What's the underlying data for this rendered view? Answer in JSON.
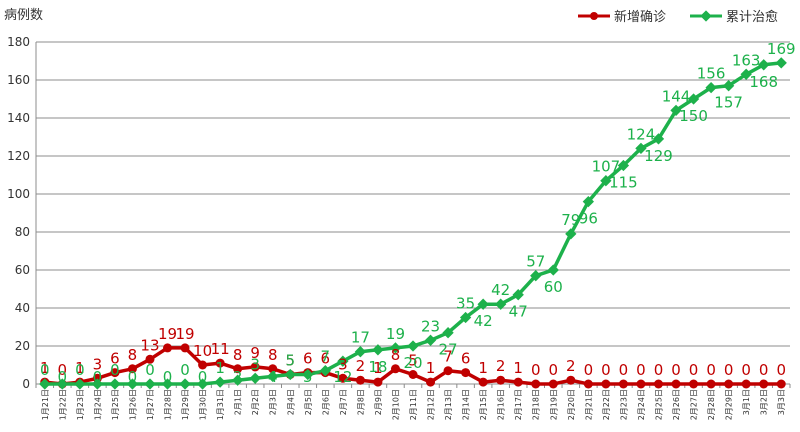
{
  "chart_data": {
    "type": "line",
    "ylabel": "病例数",
    "ylim": [
      0,
      180
    ],
    "yticks": [
      0,
      20,
      40,
      60,
      80,
      100,
      120,
      140,
      160,
      180
    ],
    "grid": "horizontal",
    "legend_position": "top-right",
    "categories": [
      "1月21日",
      "1月22日",
      "1月23日",
      "1月24日",
      "1月25日",
      "1月26日",
      "1月27日",
      "1月28日",
      "1月29日",
      "1月30日",
      "1月31日",
      "2月1日",
      "2月2日",
      "2月3日",
      "2月4日",
      "2月5日",
      "2月6日",
      "2月7日",
      "2月8日",
      "2月9日",
      "2月10日",
      "2月11日",
      "2月12日",
      "2月13日",
      "2月14日",
      "2月15日",
      "2月16日",
      "2月17日",
      "2月18日",
      "2月19日",
      "2月20日",
      "2月21日",
      "2月22日",
      "2月23日",
      "2月24日",
      "2月25日",
      "2月26日",
      "2月27日",
      "2月28日",
      "2月29日",
      "3月1日",
      "3月2日",
      "3月3日"
    ],
    "series": [
      {
        "name": "新增确诊",
        "color": "#c00000",
        "values": [
          1,
          0,
          1,
          3,
          6,
          8,
          13,
          19,
          19,
          10,
          11,
          8,
          9,
          8,
          5,
          6,
          6,
          3,
          2,
          1,
          8,
          5,
          1,
          7,
          6,
          1,
          2,
          1,
          0,
          0,
          2,
          0,
          0,
          0,
          0,
          0,
          0,
          0,
          0,
          0,
          0,
          0,
          0
        ]
      },
      {
        "name": "累计治愈",
        "color": "#1db14b",
        "values": [
          0,
          0,
          0,
          0,
          0,
          0,
          0,
          0,
          0,
          0,
          1,
          2,
          3,
          4,
          5,
          5,
          7,
          12,
          17,
          18,
          19,
          20,
          23,
          27,
          35,
          42,
          42,
          47,
          57,
          60,
          79,
          96,
          107,
          115,
          124,
          129,
          144,
          150,
          156,
          157,
          163,
          168,
          169
        ]
      }
    ]
  }
}
